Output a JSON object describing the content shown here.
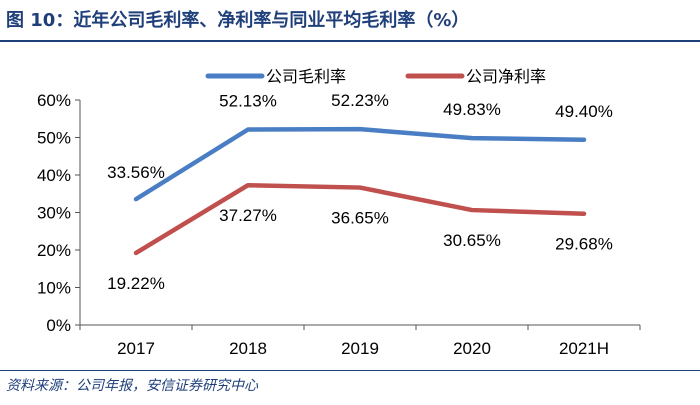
{
  "title": "图 10：近年公司毛利率、净利率与同业平均毛利率（%）",
  "source": "资料来源：公司年报，安信证券研究中心",
  "chart_data": {
    "type": "line",
    "categories": [
      "2017",
      "2018",
      "2019",
      "2020",
      "2021H"
    ],
    "series": [
      {
        "name": "公司毛利率",
        "values": [
          33.56,
          52.13,
          52.23,
          49.83,
          49.4
        ],
        "labels": [
          "33.56%",
          "52.13%",
          "52.23%",
          "49.83%",
          "49.40%"
        ],
        "color": "#4a7ec4"
      },
      {
        "name": "公司净利率",
        "values": [
          19.22,
          37.27,
          36.65,
          30.65,
          29.68
        ],
        "labels": [
          "19.22%",
          "37.27%",
          "36.65%",
          "30.65%",
          "29.68%"
        ],
        "color": "#c0504d"
      }
    ],
    "ylim": [
      0,
      60
    ],
    "yticks": [
      "0%",
      "10%",
      "20%",
      "30%",
      "40%",
      "50%",
      "60%"
    ],
    "legend_position": "top-center"
  }
}
